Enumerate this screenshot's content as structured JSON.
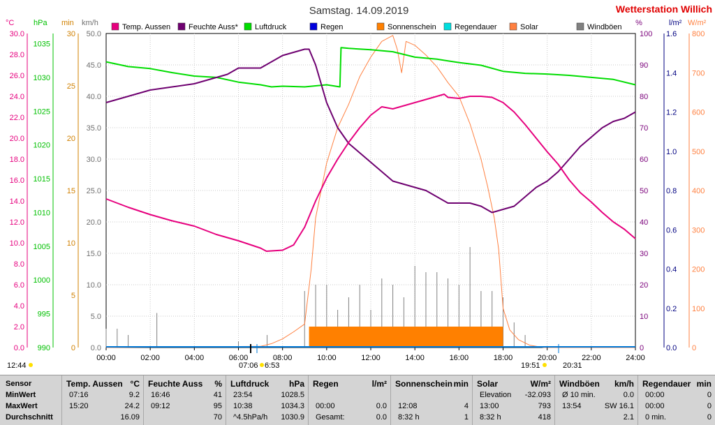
{
  "header": {
    "title": "Samstag. 14.09.2019",
    "brand": "Wetterstation Willich",
    "brand_color": "#e00000"
  },
  "legend": [
    {
      "label": "Temp. Aussen",
      "color": "#e6007e"
    },
    {
      "label": "Feuchte Auss*",
      "color": "#6e0070"
    },
    {
      "label": "Luftdruck",
      "color": "#00dd00"
    },
    {
      "label": "Regen",
      "color": "#0000dd"
    },
    {
      "label": "Sonnenschein",
      "color": "#ff8000"
    },
    {
      "label": "Regendauer",
      "color": "#00dddd"
    },
    {
      "label": "Solar",
      "color": "#ff8040"
    },
    {
      "label": "Windböen",
      "color": "#808080"
    }
  ],
  "axes": {
    "temp": {
      "unit": "°C",
      "color": "#e6007e",
      "min": 0,
      "max": 30,
      "step": 2,
      "ticks": [
        "0.0",
        "2.0",
        "4.0",
        "6.0",
        "8.0",
        "10.0",
        "12.0",
        "14.0",
        "16.0",
        "18.0",
        "20.0",
        "22.0",
        "24.0",
        "26.0",
        "28.0",
        "30.0"
      ]
    },
    "pressure": {
      "unit": "hPa",
      "color": "#00c000",
      "ticks": [
        "990",
        "995",
        "1000",
        "1005",
        "1010",
        "1015",
        "1020",
        "1025",
        "1030",
        "1035"
      ]
    },
    "minutes": {
      "unit": "min",
      "color": "#d08000",
      "ticks": [
        "0",
        "5",
        "10",
        "15",
        "20",
        "25",
        "30"
      ]
    },
    "wind": {
      "unit": "km/h",
      "color": "#707070",
      "ticks": [
        "0.0",
        "5.0",
        "10.0",
        "15.0",
        "20.0",
        "25.0",
        "30.0",
        "35.0",
        "40.0",
        "45.0",
        "50.0"
      ]
    },
    "humidity": {
      "unit": "%",
      "color": "#7a007a",
      "ticks": [
        "0",
        "10",
        "20",
        "30",
        "40",
        "50",
        "60",
        "70",
        "80",
        "90",
        "100"
      ]
    },
    "rain": {
      "unit": "l/m²",
      "color": "#000080",
      "ticks": [
        "0.0",
        "0.2",
        "0.4",
        "0.6",
        "0.8",
        "1.0",
        "1.2",
        "1.4",
        "1.6"
      ]
    },
    "solar": {
      "unit": "W/m²",
      "color": "#ff8040",
      "ticks": [
        "0",
        "100",
        "200",
        "300",
        "400",
        "500",
        "600",
        "700",
        "800"
      ]
    },
    "x_ticks": [
      "00:00",
      "02:00",
      "04:00",
      "06:00",
      "08:00",
      "10:00",
      "12:00",
      "14:00",
      "16:00",
      "18:00",
      "20:00",
      "22:00",
      "24:00"
    ]
  },
  "annotations": {
    "left_time": "12:44",
    "sunrise": "07:06",
    "sunrise2": "6:53",
    "sunset": "19:51",
    "sunset2": "20:31"
  },
  "chart_data": {
    "type": "line",
    "title": "Samstag. 14.09.2019",
    "x_unit": "hour",
    "xlim": [
      0,
      24
    ],
    "series": [
      {
        "name": "Temp. Aussen",
        "axis": "°C",
        "ylim": [
          0,
          30
        ],
        "x": [
          0,
          1,
          2,
          3,
          4,
          5,
          6,
          7,
          7.27,
          8,
          8.5,
          9,
          9.5,
          10,
          10.5,
          11,
          11.5,
          12,
          12.5,
          13,
          13.5,
          14,
          14.5,
          15,
          15.33,
          15.5,
          16,
          16.5,
          17,
          17.5,
          18,
          18.5,
          19,
          19.5,
          20,
          20.5,
          21,
          21.5,
          22,
          22.5,
          23,
          23.5,
          24
        ],
        "y": [
          14.2,
          13.4,
          12.7,
          12.1,
          11.6,
          10.8,
          10.2,
          9.5,
          9.2,
          9.3,
          9.8,
          11.5,
          14.0,
          16.2,
          18.0,
          19.6,
          21.0,
          22.2,
          23.0,
          22.8,
          23.1,
          23.4,
          23.7,
          24.0,
          24.2,
          23.9,
          23.8,
          24.0,
          24.0,
          23.9,
          23.4,
          22.5,
          21.3,
          20.0,
          18.7,
          17.5,
          16.0,
          14.8,
          13.9,
          12.9,
          12.0,
          11.3,
          10.4
        ]
      },
      {
        "name": "Feuchte Auss*",
        "axis": "%",
        "ylim": [
          0,
          100
        ],
        "x": [
          0,
          1,
          2,
          3,
          4,
          5,
          5.5,
          6,
          6.5,
          7,
          7.5,
          8,
          8.5,
          9,
          9.2,
          9.5,
          10,
          10.5,
          11,
          11.5,
          12,
          12.5,
          13,
          13.5,
          14,
          14.5,
          15,
          15.5,
          16,
          16.5,
          17,
          17.5,
          18,
          18.5,
          19,
          19.5,
          20,
          20.5,
          21,
          21.5,
          22,
          22.5,
          23,
          23.5,
          24
        ],
        "y": [
          78,
          80,
          82,
          83,
          84,
          86,
          87,
          89,
          89,
          89,
          91,
          93,
          94,
          95,
          95,
          90,
          78,
          70,
          65,
          62,
          59,
          56,
          53,
          52,
          51,
          50,
          48,
          46,
          46,
          46,
          45,
          43,
          44,
          45,
          48,
          51,
          53,
          56,
          60,
          64,
          67,
          70,
          72,
          73,
          75
        ]
      },
      {
        "name": "Luftdruck",
        "axis": "hPa",
        "ylim": [
          990,
          1036.5
        ],
        "x": [
          0,
          1,
          2,
          3,
          4,
          5,
          6,
          7,
          7.5,
          8,
          9,
          10,
          10.6,
          10.65,
          11,
          12,
          13,
          14,
          15,
          16,
          17,
          18,
          19,
          20,
          21,
          22,
          23,
          24
        ],
        "y": [
          1032.3,
          1031.6,
          1031.3,
          1030.7,
          1030.2,
          1030.0,
          1029.3,
          1028.9,
          1028.6,
          1028.7,
          1028.6,
          1028.9,
          1028.6,
          1034.4,
          1034.3,
          1034.1,
          1033.8,
          1033.0,
          1032.7,
          1032.2,
          1031.8,
          1030.9,
          1030.6,
          1030.5,
          1030.3,
          1030.0,
          1029.7,
          1028.9
        ]
      },
      {
        "name": "Solar",
        "axis": "W/m²",
        "ylim": [
          0,
          800
        ],
        "x": [
          0,
          7.0,
          7.5,
          8.0,
          8.5,
          9.0,
          9.3,
          9.5,
          10,
          10.5,
          11,
          11.5,
          12,
          12.5,
          13,
          13.2,
          13.4,
          13.6,
          14,
          14.5,
          15,
          15.5,
          16,
          16.5,
          17,
          17.3,
          17.6,
          17.8,
          18,
          18.3,
          18.7,
          19.2,
          19.85,
          24
        ],
        "y": [
          0,
          3,
          10,
          22,
          40,
          60,
          200,
          330,
          470,
          560,
          620,
          690,
          740,
          780,
          795,
          760,
          700,
          780,
          770,
          745,
          715,
          675,
          640,
          570,
          480,
          410,
          330,
          250,
          100,
          45,
          20,
          6,
          0,
          0
        ]
      },
      {
        "name": "Sonnenschein",
        "axis": "min",
        "ylim": [
          0,
          30
        ],
        "x": [
          9.2,
          18.0
        ],
        "y": [
          2,
          2
        ]
      },
      {
        "name": "Windböen",
        "axis": "km/h",
        "ylim": [
          0,
          50
        ],
        "x": [
          0,
          0.5,
          1,
          2.3,
          6,
          7.3,
          9,
          9.5,
          10,
          10.5,
          11,
          11.5,
          12,
          12.5,
          13,
          13.5,
          14,
          14.5,
          15,
          15.5,
          16,
          16.5,
          17,
          17.5,
          18,
          18.5,
          19
        ],
        "y": [
          3,
          3,
          2,
          5.5,
          1,
          2,
          9,
          10,
          10,
          6,
          8,
          10,
          6,
          11,
          10,
          8,
          13,
          12,
          12,
          11,
          10,
          16,
          9,
          9,
          8,
          4,
          2
        ]
      },
      {
        "name": "Regen",
        "axis": "l/m²",
        "ylim": [
          0,
          1.6
        ],
        "x": [
          0,
          24
        ],
        "y": [
          0,
          0
        ]
      }
    ]
  },
  "stats": {
    "row_labels": [
      "Sensor",
      "MinWert",
      "MaxWert",
      "Durchschnitt"
    ],
    "columns": [
      {
        "title": "Temp. Aussen",
        "unit": "°C",
        "rows": [
          [
            "07:16",
            "9.2"
          ],
          [
            "15:20",
            "24.2"
          ],
          [
            "",
            "16.09"
          ]
        ]
      },
      {
        "title": "Feuchte Auss",
        "unit": "%",
        "rows": [
          [
            "16:46",
            "41"
          ],
          [
            "09:12",
            "95"
          ],
          [
            "",
            "70"
          ]
        ]
      },
      {
        "title": "Luftdruck",
        "unit": "hPa",
        "rows": [
          [
            "23:54",
            "1028.5"
          ],
          [
            "10:38",
            "1034.3"
          ],
          [
            "^4.5hPa/h",
            "1030.9"
          ]
        ]
      },
      {
        "title": "Regen",
        "unit": "l/m²",
        "rows": [
          [
            "",
            ""
          ],
          [
            "00:00",
            "0.0"
          ],
          [
            "Gesamt:",
            "0.0"
          ]
        ]
      },
      {
        "title": "Sonnenschein",
        "unit": "min",
        "rows": [
          [
            "",
            ""
          ],
          [
            "12:08",
            "4"
          ],
          [
            "8:32 h",
            "1"
          ]
        ]
      },
      {
        "title": "Solar",
        "unit": "W/m²",
        "rows": [
          [
            "Elevation",
            "-32.093"
          ],
          [
            "13:00",
            "793"
          ],
          [
            "8:32 h",
            "418"
          ]
        ]
      },
      {
        "title": "Windböen",
        "unit": "km/h",
        "rows": [
          [
            "Ø 10 min.",
            "0.0"
          ],
          [
            "13:54",
            "SW 16.1"
          ],
          [
            "",
            "2.1"
          ]
        ]
      },
      {
        "title": "Regendauer",
        "unit": "min",
        "rows": [
          [
            "00:00",
            "0"
          ],
          [
            "00:00",
            "0"
          ],
          [
            "0 min.",
            "0"
          ]
        ]
      }
    ]
  }
}
